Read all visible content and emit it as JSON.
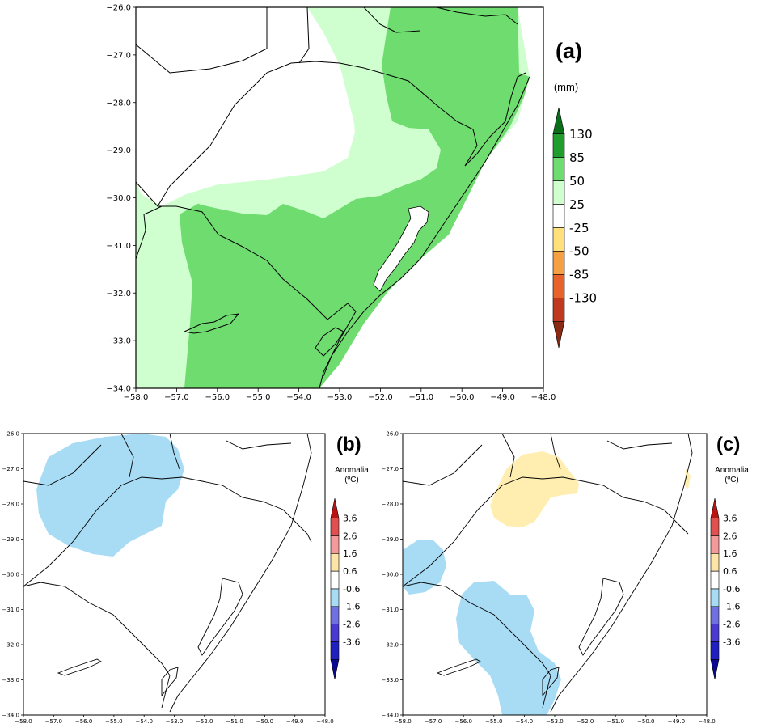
{
  "panels": [
    {
      "id": "a",
      "tag": "(a)",
      "unit_line1": "(mm)",
      "unit_line2": "",
      "x_ticks": [
        "-58.0",
        "-57.0",
        "-56.0",
        "-55.0",
        "-54.0",
        "-53.0",
        "-52.0",
        "-51.0",
        "-50.0",
        "-49.0",
        "-48.0"
      ],
      "y_ticks": [
        "-26.0",
        "-27.0",
        "-28.0",
        "-29.0",
        "-30.0",
        "-31.0",
        "-32.0",
        "-33.0",
        "-34.0"
      ],
      "x_range": [
        -58.0,
        -48.0
      ],
      "y_range": [
        -34.0,
        -26.0
      ],
      "legend_labels": [
        "130",
        "85",
        "50",
        "25",
        "-25",
        "-50",
        "-85",
        "-130"
      ],
      "legend_colors": [
        "#0a6e1a",
        "#1f9e2e",
        "#6fdc6f",
        "#cfffcf",
        "#ffffff",
        "#ffe07a",
        "#f5a045",
        "#e8622c",
        "#c0391e",
        "#8b2a12"
      ]
    },
    {
      "id": "b",
      "tag": "(b)",
      "unit_line1": "Anomalia",
      "unit_line2": "(ºC)",
      "x_ticks": [
        "-58.0",
        "-57.0",
        "-56.0",
        "-55.0",
        "-54.0",
        "-53.0",
        "-52.0",
        "-51.0",
        "-50.0",
        "-49.0",
        "-48.0"
      ],
      "y_ticks": [
        "-26.0",
        "-27.0",
        "-28.0",
        "-29.0",
        "-30.0",
        "-31.0",
        "-32.0",
        "-33.0",
        "-34.0"
      ],
      "x_range": [
        -58.0,
        -48.0
      ],
      "y_range": [
        -34.0,
        -26.0
      ],
      "legend_labels": [
        "3.6",
        "2.6",
        "1.6",
        "0.6",
        "-0.6",
        "-1.6",
        "-2.6",
        "-3.6"
      ],
      "legend_colors": [
        "#b81414",
        "#e05050",
        "#f59a9a",
        "#ffe4a8",
        "#ffffff",
        "#a8dcf5",
        "#7070e0",
        "#4a3ad0",
        "#2020c0",
        "#0a0a90"
      ]
    },
    {
      "id": "c",
      "tag": "(c)",
      "unit_line1": "Anomalia",
      "unit_line2": "(ºC)",
      "x_ticks": [
        "-58.0",
        "-57.0",
        "-56.0",
        "-55.0",
        "-54.0",
        "-53.0",
        "-52.0",
        "-51.0",
        "-50.0",
        "-49.0",
        "-48.0"
      ],
      "y_ticks": [
        "-26.0",
        "-27.0",
        "-28.0",
        "-29.0",
        "-30.0",
        "-31.0",
        "-32.0",
        "-33.0",
        "-34.0"
      ],
      "x_range": [
        -58.0,
        -48.0
      ],
      "y_range": [
        -34.0,
        -26.0
      ],
      "legend_labels": [
        "3.6",
        "2.6",
        "1.6",
        "0.6",
        "-0.6",
        "-1.6",
        "-2.6",
        "-3.6"
      ],
      "legend_colors": [
        "#b81414",
        "#e05050",
        "#f59a9a",
        "#ffe4a8",
        "#ffffff",
        "#a8dcf5",
        "#7070e0",
        "#4a3ad0",
        "#2020c0",
        "#0a0a90"
      ]
    }
  ],
  "colors": {
    "precip_light": "#cfffcf",
    "precip_mid": "#6fdc6f",
    "temp_cold": "#a8dcf5",
    "temp_warm": "#ffeeb0",
    "border": "#000000"
  }
}
